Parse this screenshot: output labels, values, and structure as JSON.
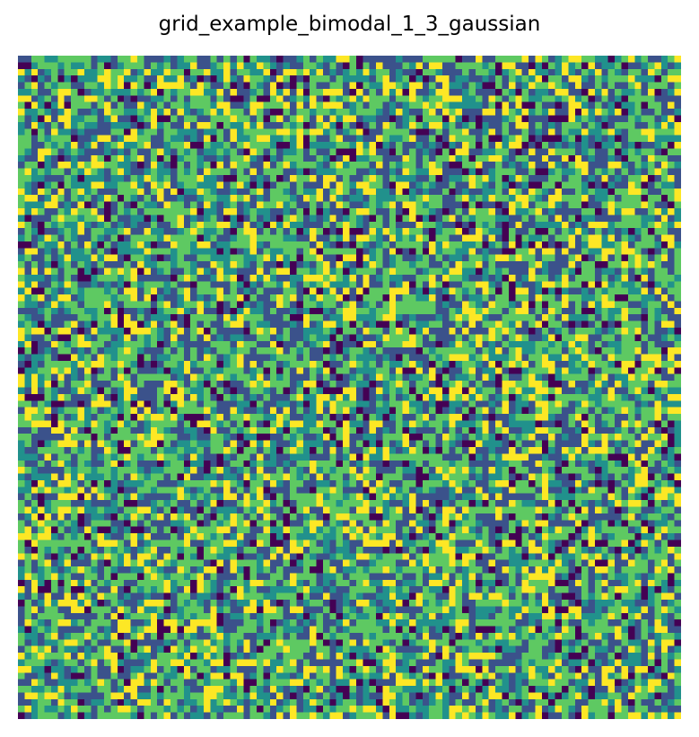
{
  "chart_data": {
    "type": "heatmap",
    "title": "grid_example_bimodal_1_3_gaussian",
    "xlabel": "",
    "ylabel": "",
    "axes_visible": false,
    "grid": false,
    "legend": "none",
    "colormap": "viridis",
    "rows": 100,
    "cols": 100,
    "levels": [
      0,
      1,
      2,
      3,
      4
    ],
    "level_colors": [
      "#440154",
      "#3b528b",
      "#21918c",
      "#5ec962",
      "#fde725"
    ],
    "level_weights": [
      0.08,
      0.24,
      0.2,
      0.3,
      0.18
    ],
    "values_note": "randomly generated cell values"
  }
}
